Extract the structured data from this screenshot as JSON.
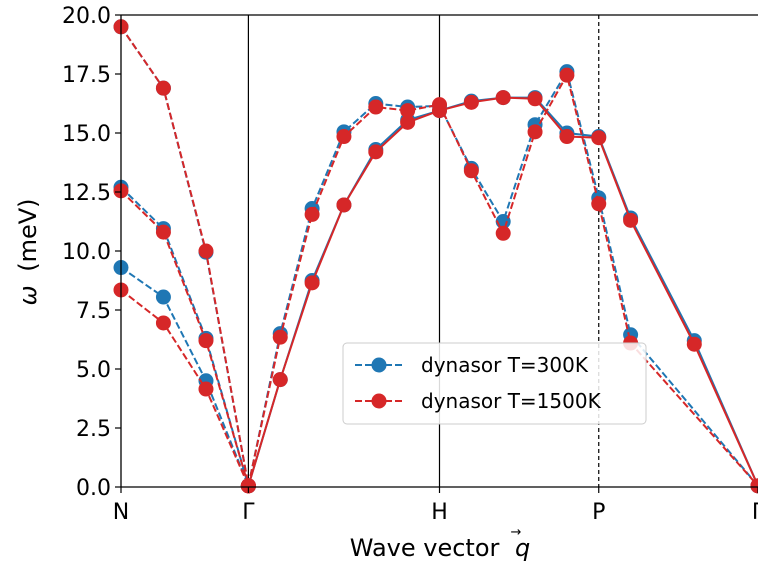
{
  "chart_data": {
    "type": "line",
    "xlabel": "Wave vector",
    "xlabel_symbol": "q",
    "xlabel_arrow": "→",
    "ylabel_symbol": "ω",
    "ylabel_unit": "(meV)",
    "ylim": [
      0,
      20
    ],
    "yticks": [
      {
        "value": 0.0,
        "label": "0.0"
      },
      {
        "value": 2.5,
        "label": "2.5"
      },
      {
        "value": 5.0,
        "label": "5.0"
      },
      {
        "value": 7.5,
        "label": "7.5"
      },
      {
        "value": 10.0,
        "label": "10.0"
      },
      {
        "value": 12.5,
        "label": "12.5"
      },
      {
        "value": 15.0,
        "label": "15.0"
      },
      {
        "value": 17.5,
        "label": "17.5"
      },
      {
        "value": 20.0,
        "label": "20.0"
      }
    ],
    "xlim": [
      0,
      5
    ],
    "xticks": [
      {
        "value": 0,
        "label": "N"
      },
      {
        "value": 1,
        "label": "Γ"
      },
      {
        "value": 2.5,
        "label": "H"
      },
      {
        "value": 3.75,
        "label": "P"
      },
      {
        "value": 5,
        "label": "Γ"
      }
    ],
    "vlines": [
      {
        "x": 1,
        "style": "solid"
      },
      {
        "x": 2.5,
        "style": "solid"
      },
      {
        "x": 3.75,
        "style": "dashed"
      }
    ],
    "legend_position": "center-right",
    "series": [
      {
        "name": "dynasor T=300K",
        "color": "#1f77b4",
        "branches": [
          {
            "style": "dashed",
            "points": [
              [
                0,
                9.3
              ],
              [
                0.333,
                8.05
              ],
              [
                0.667,
                4.5
              ],
              [
                1,
                0.05
              ]
            ]
          },
          {
            "style": "dashed",
            "points": [
              [
                0,
                12.7
              ],
              [
                0.333,
                10.95
              ],
              [
                0.667,
                6.3
              ],
              [
                1,
                0.05
              ]
            ]
          },
          {
            "style": "dashed",
            "points": [
              [
                0,
                19.5
              ],
              [
                0.333,
                16.9
              ],
              [
                0.667,
                9.95
              ],
              [
                1,
                0.05
              ]
            ]
          },
          {
            "style": "solid",
            "points": [
              [
                1,
                0.05
              ],
              [
                1.25,
                4.55
              ],
              [
                1.5,
                8.75
              ],
              [
                1.75,
                11.95
              ],
              [
                2,
                14.3
              ],
              [
                2.25,
                15.55
              ],
              [
                2.5,
                15.95
              ],
              [
                2.75,
                16.35
              ],
              [
                3.0,
                16.5
              ],
              [
                3.25,
                16.5
              ],
              [
                3.5,
                15.0
              ],
              [
                3.75,
                14.85
              ],
              [
                4.0,
                11.4
              ],
              [
                4.5,
                6.2
              ],
              [
                5,
                0.05
              ]
            ]
          },
          {
            "style": "dashed",
            "points": [
              [
                1,
                0.05
              ],
              [
                1.25,
                6.5
              ],
              [
                1.5,
                11.8
              ],
              [
                1.75,
                15.05
              ],
              [
                2,
                16.25
              ],
              [
                2.25,
                16.1
              ],
              [
                2.5,
                16.15
              ],
              [
                2.75,
                13.5
              ],
              [
                3.0,
                11.25
              ],
              [
                3.25,
                15.35
              ],
              [
                3.5,
                17.6
              ],
              [
                3.75,
                12.25
              ],
              [
                4.0,
                6.45
              ],
              [
                5,
                0.05
              ]
            ]
          }
        ]
      },
      {
        "name": "dynasor T=1500K",
        "color": "#d62728",
        "branches": [
          {
            "style": "dashed",
            "points": [
              [
                0,
                8.35
              ],
              [
                0.333,
                6.95
              ],
              [
                0.667,
                4.15
              ],
              [
                1,
                0.05
              ]
            ]
          },
          {
            "style": "dashed",
            "points": [
              [
                0,
                12.55
              ],
              [
                0.333,
                10.8
              ],
              [
                0.667,
                6.2
              ],
              [
                1,
                0.05
              ]
            ]
          },
          {
            "style": "dashed",
            "points": [
              [
                0,
                19.5
              ],
              [
                0.333,
                16.9
              ],
              [
                0.667,
                10.0
              ],
              [
                1,
                0.05
              ]
            ]
          },
          {
            "style": "solid",
            "points": [
              [
                1,
                0.05
              ],
              [
                1.25,
                4.55
              ],
              [
                1.5,
                8.65
              ],
              [
                1.75,
                11.95
              ],
              [
                2,
                14.2
              ],
              [
                2.25,
                15.45
              ],
              [
                2.5,
                15.95
              ],
              [
                2.75,
                16.3
              ],
              [
                3.0,
                16.5
              ],
              [
                3.25,
                16.45
              ],
              [
                3.5,
                14.85
              ],
              [
                3.75,
                14.8
              ],
              [
                4.0,
                11.3
              ],
              [
                4.5,
                6.05
              ],
              [
                5,
                0.05
              ]
            ]
          },
          {
            "style": "dashed",
            "points": [
              [
                1,
                0.05
              ],
              [
                1.25,
                6.35
              ],
              [
                1.5,
                11.55
              ],
              [
                1.75,
                14.85
              ],
              [
                2,
                16.1
              ],
              [
                2.25,
                15.95
              ],
              [
                2.5,
                16.2
              ],
              [
                2.75,
                13.4
              ],
              [
                3.0,
                10.75
              ],
              [
                3.25,
                15.05
              ],
              [
                3.5,
                17.45
              ],
              [
                3.75,
                12.0
              ],
              [
                4.0,
                6.1
              ],
              [
                5,
                0.05
              ]
            ]
          }
        ]
      }
    ]
  }
}
